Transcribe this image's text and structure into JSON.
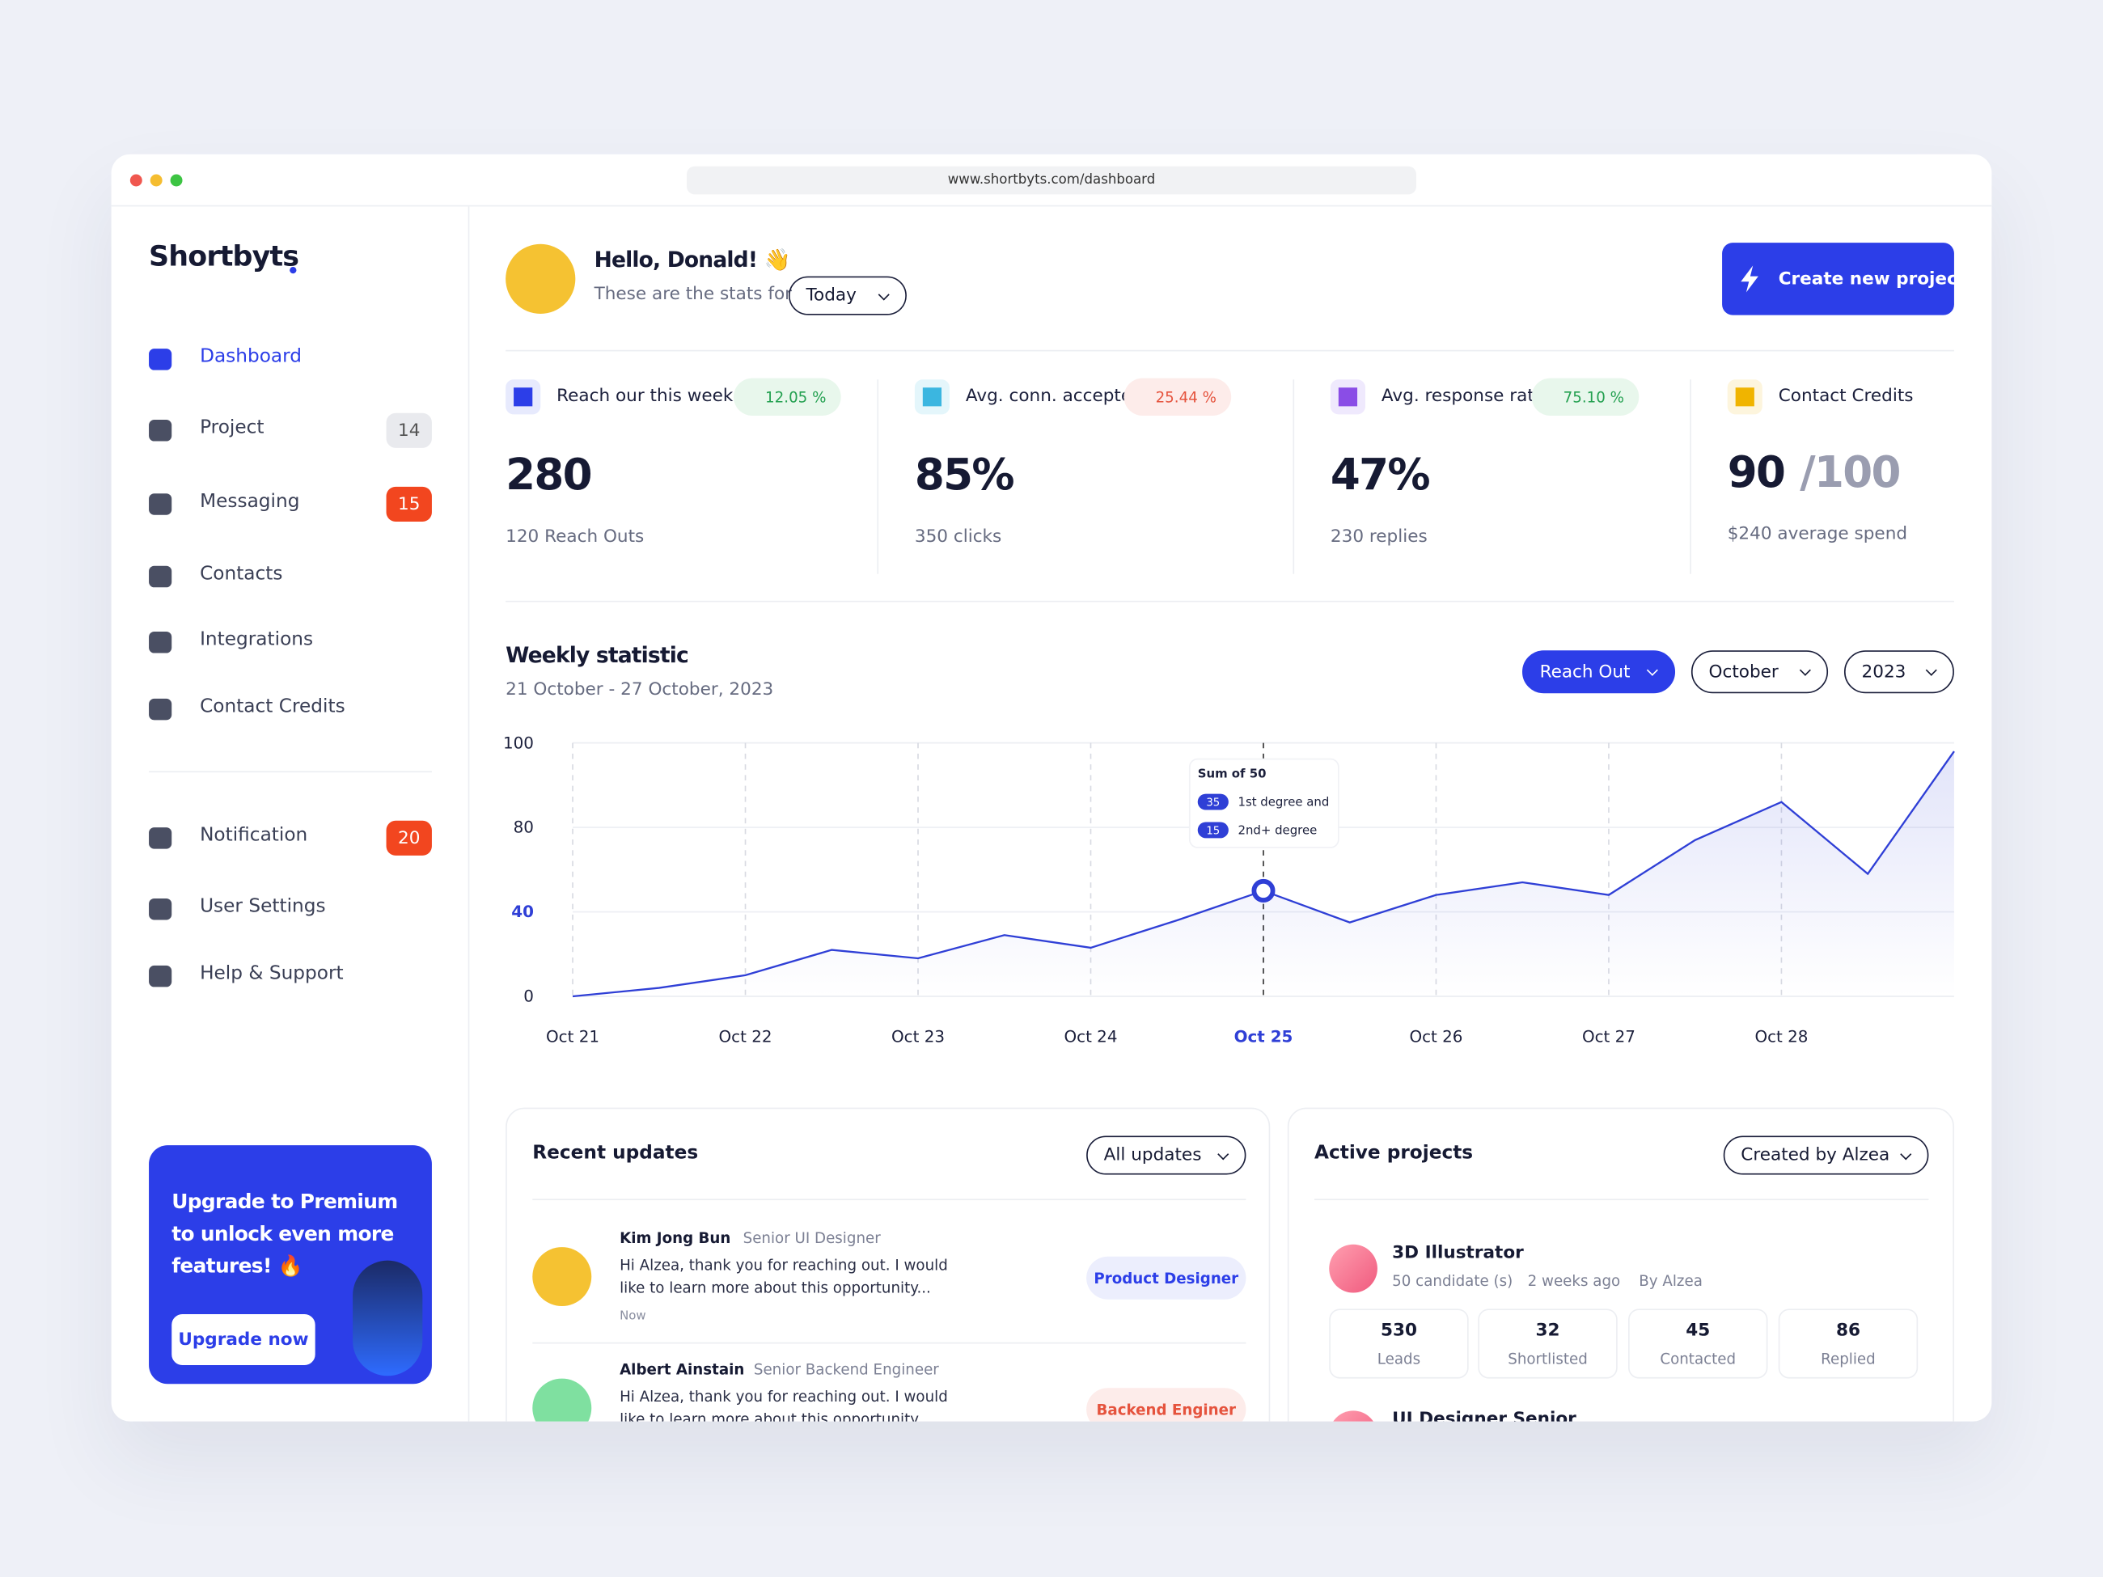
{
  "browser": {
    "url": "www.shortbyts.com/dashboard"
  },
  "sidebar": {
    "logo": "Shortbyts",
    "nav": [
      {
        "label": "Dashboard"
      },
      {
        "label": "Project",
        "badge": "14"
      },
      {
        "label": "Messaging",
        "badge": "15"
      },
      {
        "label": "Contacts"
      },
      {
        "label": "Integrations"
      },
      {
        "label": "Contact Credits"
      }
    ],
    "nav2": [
      {
        "label": "Notification",
        "badge": "20"
      },
      {
        "label": "User Settings"
      },
      {
        "label": "Help & Support"
      }
    ],
    "promo": {
      "text": "Upgrade to Premium to unlock even more features! 🔥",
      "button": "Upgrade now"
    }
  },
  "header": {
    "greeting": "Hello, Donald! 👋",
    "subtitle": "These are the stats for",
    "period": "Today",
    "cta": "Create new project"
  },
  "stats": [
    {
      "label": "Reach our this week",
      "change": "12.05 %",
      "value": "280",
      "note": "120 Reach Outs"
    },
    {
      "label": "Avg. conn. accepted",
      "change": "25.44 %",
      "value": "85%",
      "note": "350 clicks"
    },
    {
      "label": "Avg. response rate",
      "change": "75.10 %",
      "value": "47%",
      "note": "230 replies"
    },
    {
      "label": "Contact Credits",
      "value": "90",
      "total": "/100",
      "note": "$240 average spend"
    }
  ],
  "weekly": {
    "title": "Weekly statistic",
    "range": "21 October - 27 October, 2023",
    "filters": [
      "Reach Out",
      "October",
      "2023"
    ]
  },
  "chart_data": {
    "type": "line",
    "categories": [
      "Oct 21",
      null,
      "Oct 22",
      null,
      "Oct 23",
      null,
      "Oct 24",
      null,
      "Oct 25",
      null,
      "Oct 26",
      null,
      "Oct 27",
      null,
      "Oct 28",
      null,
      null
    ],
    "values": [
      0,
      4,
      10,
      22,
      18,
      29,
      23,
      36,
      50,
      35,
      48,
      54,
      48,
      74,
      86,
      58,
      98
    ],
    "color": "#2f3fd6",
    "ylim": [
      0,
      100
    ],
    "yticks": [
      0,
      40,
      80,
      100
    ],
    "grid": true,
    "tooltip": {
      "at": 8,
      "title": "Sum of 50",
      "items": [
        {
          "value": 35,
          "label": "1st degree and"
        },
        {
          "value": 15,
          "label": "2nd+ degree"
        }
      ]
    }
  },
  "updates": {
    "title": "Recent updates",
    "filter": "All updates",
    "items": [
      {
        "name": "Kim Jong Bun",
        "role": "Senior UI Designer",
        "message": "Hi Alzea, thank you for reaching out. I would like to learn more about this opportunity...",
        "time": "Now",
        "tag": "Product Designer"
      },
      {
        "name": "Albert Ainstain",
        "role": "Senior Backend Engineer",
        "message": "Hi Alzea, thank you for reaching out. I would like to learn more about this opportunity...",
        "tag": "Backend Enginer"
      }
    ]
  },
  "projects": {
    "title": "Active projects",
    "filter": "Created by Alzea",
    "items": [
      {
        "name": "3D Illustrator",
        "meta": [
          "50 candidate (s)",
          "2 weeks ago",
          "By Alzea"
        ],
        "stats": [
          {
            "value": "530",
            "label": "Leads"
          },
          {
            "value": "32",
            "label": "Shortlisted"
          },
          {
            "value": "45",
            "label": "Contacted"
          },
          {
            "value": "86",
            "label": "Replied"
          }
        ]
      },
      {
        "name": "UI Designer Senior"
      }
    ]
  }
}
